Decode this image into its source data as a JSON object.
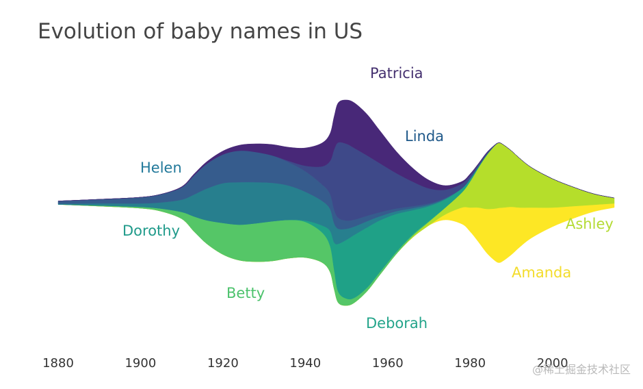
{
  "chart_data": {
    "type": "area",
    "subtype": "streamgraph",
    "title": "Evolution of baby names in US",
    "xlabel": "",
    "ylabel": "",
    "xlim": [
      1880,
      2015
    ],
    "xticks": [
      "1880",
      "1900",
      "1920",
      "1940",
      "1960",
      "1980",
      "2000"
    ],
    "grid": false,
    "legend": "none (inline series labels)",
    "x": [
      1880,
      1890,
      1900,
      1905,
      1910,
      1913,
      1916,
      1920,
      1924,
      1928,
      1932,
      1936,
      1940,
      1944,
      1946,
      1947,
      1948,
      1950,
      1952,
      1955,
      1958,
      1962,
      1966,
      1970,
      1974,
      1978,
      1980,
      1982,
      1984,
      1986,
      1987,
      1988,
      1990,
      1992,
      1995,
      2000,
      2005,
      2010,
      2015
    ],
    "series": [
      {
        "name": "Amanda",
        "color": "#fde725",
        "values": [
          0,
          0,
          0,
          0,
          0,
          0,
          0,
          0,
          0,
          0,
          0,
          0,
          0,
          0,
          0,
          0,
          0,
          0,
          0,
          0,
          0,
          0,
          0,
          0,
          8,
          24,
          35,
          50,
          64,
          76,
          80,
          78,
          70,
          58,
          44,
          28,
          18,
          10,
          6
        ]
      },
      {
        "name": "Ashley",
        "color": "#b5de2b",
        "values": [
          0,
          0,
          0,
          0,
          0,
          0,
          0,
          0,
          0,
          0,
          0,
          0,
          0,
          0,
          0,
          0,
          0,
          0,
          0,
          0,
          0,
          0,
          2,
          5,
          10,
          22,
          38,
          58,
          78,
          92,
          95,
          92,
          82,
          72,
          58,
          42,
          28,
          16,
          8
        ]
      },
      {
        "name": "Betty",
        "color": "#55c667",
        "values": [
          0,
          1,
          2,
          4,
          10,
          22,
          34,
          46,
          52,
          56,
          58,
          56,
          52,
          44,
          38,
          28,
          16,
          10,
          7,
          5,
          4,
          3,
          2,
          1,
          0,
          0,
          0,
          0,
          0,
          0,
          0,
          0,
          0,
          0,
          0,
          0,
          0,
          0,
          0
        ]
      },
      {
        "name": "Deborah",
        "color": "#1fa187",
        "values": [
          0,
          0,
          0,
          0,
          0,
          0,
          0,
          0,
          0,
          0,
          0,
          0,
          2,
          10,
          22,
          40,
          70,
          86,
          92,
          88,
          76,
          56,
          36,
          22,
          12,
          6,
          4,
          2,
          1,
          0,
          0,
          0,
          0,
          0,
          0,
          0,
          0,
          0,
          0
        ]
      },
      {
        "name": "Dorothy",
        "color": "#277f8e",
        "values": [
          1,
          3,
          5,
          9,
          18,
          32,
          46,
          58,
          62,
          60,
          56,
          50,
          42,
          36,
          32,
          28,
          22,
          16,
          12,
          9,
          6,
          4,
          3,
          2,
          1,
          0,
          0,
          0,
          0,
          0,
          0,
          0,
          0,
          0,
          0,
          0,
          0,
          0,
          0
        ]
      },
      {
        "name": "Helen",
        "color": "#365c8d",
        "values": [
          4,
          6,
          9,
          12,
          18,
          28,
          36,
          42,
          46,
          44,
          40,
          34,
          30,
          24,
          22,
          20,
          16,
          12,
          10,
          8,
          6,
          4,
          3,
          2,
          1,
          0,
          0,
          0,
          0,
          0,
          0,
          0,
          0,
          0,
          0,
          0,
          0,
          0,
          0
        ]
      },
      {
        "name": "Linda",
        "color": "#3e4989",
        "values": [
          0,
          0,
          0,
          0,
          0,
          0,
          0,
          0,
          0,
          0,
          0,
          2,
          8,
          26,
          48,
          88,
          110,
          112,
          104,
          88,
          72,
          52,
          36,
          22,
          12,
          7,
          5,
          3,
          2,
          1,
          0,
          0,
          0,
          0,
          0,
          0,
          0,
          0,
          0
        ]
      },
      {
        "name": "Patricia",
        "color": "#482878",
        "values": [
          0,
          0,
          0,
          0,
          1,
          2,
          3,
          5,
          8,
          12,
          16,
          20,
          26,
          34,
          40,
          48,
          58,
          64,
          66,
          60,
          48,
          32,
          20,
          12,
          6,
          3,
          2,
          1,
          1,
          0,
          0,
          0,
          0,
          0,
          0,
          0,
          0,
          0,
          0
        ]
      }
    ]
  },
  "labels": {
    "helen": "Helen",
    "dorothy": "Dorothy",
    "betty": "Betty",
    "patricia": "Patricia",
    "linda": "Linda",
    "deborah": "Deborah",
    "ashley": "Ashley",
    "amanda": "Amanda"
  },
  "watermark": "@稀土掘金技术社区"
}
